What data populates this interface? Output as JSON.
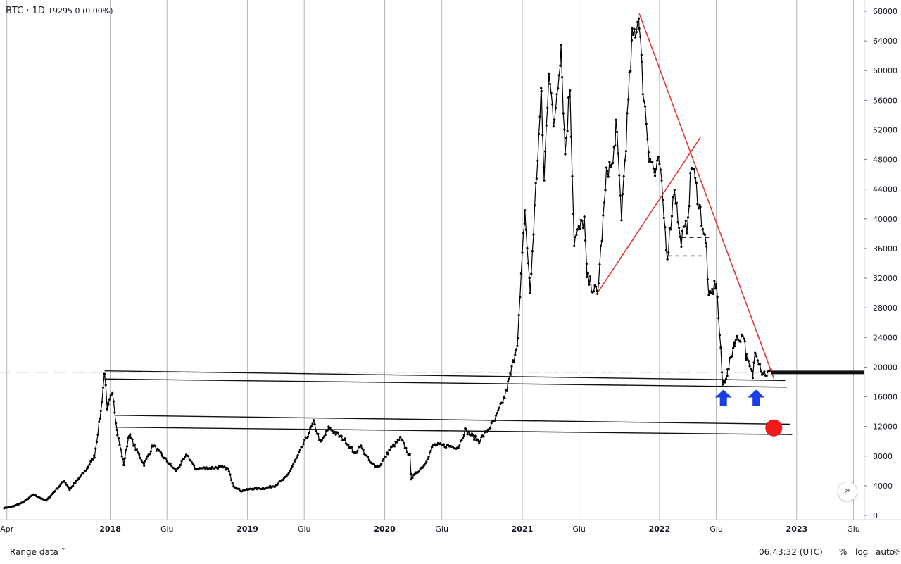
{
  "legend": {
    "symbol": "BTC",
    "interval": "1D",
    "values": "19295  0 (0.00%)"
  },
  "bottom_bar": {
    "range_label": "Range data",
    "time": "06:43:32 (UTC)",
    "percent": "%",
    "log": "log",
    "auto": "auto",
    "settings_icon": "gear-icon"
  },
  "scroll_button_icon": "double-chevron-right-icon",
  "colors": {
    "price": "#000000",
    "trendline": "#e53935",
    "arrow": "#1a3ee6",
    "marker": "#f01a1a",
    "grid": "#b2b5be",
    "text": "#131722"
  },
  "chart_data": {
    "type": "line",
    "symbol": "BTC",
    "interval": "1D",
    "x_ticks": [
      "Apr",
      "2018",
      "Giu",
      "2019",
      "Giu",
      "2020",
      "Giu",
      "2021",
      "Giu",
      "2022",
      "Giu",
      "2023",
      "Giu"
    ],
    "y_ticks": [
      0,
      4000,
      8000,
      12000,
      16000,
      20000,
      24000,
      28000,
      32000,
      36000,
      40000,
      44000,
      48000,
      52000,
      56000,
      60000,
      64000,
      68000
    ],
    "ylim": [
      0,
      68000
    ],
    "xlim": [
      "2017-03-25",
      "2023-06-30"
    ],
    "current_price": 19295,
    "series": [
      {
        "points": [
          [
            "2017-03-25",
            1000
          ],
          [
            "2017-04-20",
            1250
          ],
          [
            "2017-05-15",
            1800
          ],
          [
            "2017-06-10",
            2800
          ],
          [
            "2017-07-15",
            2000
          ],
          [
            "2017-08-05",
            3200
          ],
          [
            "2017-09-01",
            4700
          ],
          [
            "2017-09-15",
            3500
          ],
          [
            "2017-10-10",
            5000
          ],
          [
            "2017-11-01",
            6400
          ],
          [
            "2017-11-20",
            8000
          ],
          [
            "2017-12-07",
            14000
          ],
          [
            "2017-12-17",
            19500
          ],
          [
            "2017-12-24",
            14000
          ],
          [
            "2018-01-07",
            17000
          ],
          [
            "2018-01-20",
            11000
          ],
          [
            "2018-02-06",
            6900
          ],
          [
            "2018-02-20",
            11000
          ],
          [
            "2018-03-10",
            9000
          ],
          [
            "2018-04-01",
            6900
          ],
          [
            "2018-04-25",
            9500
          ],
          [
            "2018-05-20",
            8000
          ],
          [
            "2018-06-25",
            6000
          ],
          [
            "2018-07-25",
            8200
          ],
          [
            "2018-08-15",
            6300
          ],
          [
            "2018-09-20",
            6400
          ],
          [
            "2018-10-20",
            6500
          ],
          [
            "2018-11-10",
            6300
          ],
          [
            "2018-11-25",
            4000
          ],
          [
            "2018-12-15",
            3300
          ],
          [
            "2019-01-15",
            3600
          ],
          [
            "2019-02-15",
            3650
          ],
          [
            "2019-03-15",
            4000
          ],
          [
            "2019-04-15",
            5200
          ],
          [
            "2019-05-15",
            8000
          ],
          [
            "2019-06-26",
            12500
          ],
          [
            "2019-07-15",
            9800
          ],
          [
            "2019-08-06",
            11800
          ],
          [
            "2019-09-20",
            10000
          ],
          [
            "2019-10-15",
            8300
          ],
          [
            "2019-10-27",
            9500
          ],
          [
            "2019-11-25",
            7000
          ],
          [
            "2019-12-17",
            6600
          ],
          [
            "2020-01-15",
            8900
          ],
          [
            "2020-02-12",
            10400
          ],
          [
            "2020-03-08",
            8000
          ],
          [
            "2020-03-12",
            5000
          ],
          [
            "2020-04-15",
            6800
          ],
          [
            "2020-05-10",
            9500
          ],
          [
            "2020-06-15",
            9400
          ],
          [
            "2020-07-15",
            9200
          ],
          [
            "2020-08-02",
            11500
          ],
          [
            "2020-09-08",
            10000
          ],
          [
            "2020-10-20",
            12800
          ],
          [
            "2020-11-15",
            16000
          ],
          [
            "2020-12-01",
            19000
          ],
          [
            "2020-12-20",
            23800
          ],
          [
            "2021-01-08",
            41000
          ],
          [
            "2021-01-22",
            30000
          ],
          [
            "2021-02-08",
            46000
          ],
          [
            "2021-02-21",
            57000
          ],
          [
            "2021-02-28",
            45000
          ],
          [
            "2021-03-13",
            61000
          ],
          [
            "2021-03-25",
            52000
          ],
          [
            "2021-04-14",
            63500
          ],
          [
            "2021-04-25",
            49000
          ],
          [
            "2021-05-08",
            58000
          ],
          [
            "2021-05-19",
            37000
          ],
          [
            "2021-06-15",
            40000
          ],
          [
            "2021-06-22",
            32000
          ],
          [
            "2021-07-20",
            29800
          ],
          [
            "2021-08-15",
            47000
          ],
          [
            "2021-08-30",
            47000
          ],
          [
            "2021-09-07",
            52700
          ],
          [
            "2021-09-22",
            40500
          ],
          [
            "2021-10-20",
            64000
          ],
          [
            "2021-11-08",
            67500
          ],
          [
            "2021-11-15",
            60000
          ],
          [
            "2021-12-04",
            49000
          ],
          [
            "2021-12-20",
            46000
          ],
          [
            "2022-01-01",
            47500
          ],
          [
            "2022-01-22",
            35000
          ],
          [
            "2022-02-10",
            44500
          ],
          [
            "2022-02-25",
            37000
          ],
          [
            "2022-03-15",
            39000
          ],
          [
            "2022-03-28",
            47500
          ],
          [
            "2022-04-20",
            41000
          ],
          [
            "2022-05-06",
            36000
          ],
          [
            "2022-05-12",
            29000
          ],
          [
            "2022-06-01",
            31500
          ],
          [
            "2022-06-13",
            22000
          ],
          [
            "2022-06-18",
            17600
          ],
          [
            "2022-07-01",
            19300
          ],
          [
            "2022-07-20",
            23500
          ],
          [
            "2022-08-13",
            24400
          ],
          [
            "2022-08-20",
            21200
          ],
          [
            "2022-09-06",
            18800
          ],
          [
            "2022-09-13",
            22500
          ],
          [
            "2022-10-01",
            19300
          ],
          [
            "2022-10-15",
            19100
          ],
          [
            "2022-10-25",
            19295
          ]
        ]
      }
    ],
    "trendlines": [
      {
        "kind": "support-line",
        "from": [
          "2017-12-17",
          19500
        ],
        "to": [
          "2022-12-01",
          18200
        ]
      },
      {
        "kind": "support-line",
        "from": [
          "2017-12-17",
          18400
        ],
        "to": [
          "2022-12-05",
          17300
        ]
      },
      {
        "kind": "support-line",
        "from": [
          "2018-01-15",
          13500
        ],
        "to": [
          "2022-12-15",
          12300
        ]
      },
      {
        "kind": "support-line",
        "from": [
          "2018-01-15",
          11900
        ],
        "to": [
          "2022-12-20",
          10900
        ]
      },
      {
        "kind": "red-trendline",
        "from": [
          "2021-11-08",
          67700
        ],
        "to": [
          "2022-11-01",
          18500
        ]
      },
      {
        "kind": "red-trendline",
        "from": [
          "2021-07-20",
          30000
        ],
        "to": [
          "2022-04-20",
          51000
        ]
      },
      {
        "kind": "dashed-level",
        "from": [
          "2022-03-01",
          37500
        ],
        "to": [
          "2022-05-15",
          37500
        ]
      },
      {
        "kind": "dashed-level",
        "from": [
          "2022-01-22",
          35000
        ],
        "to": [
          "2022-05-01",
          35000
        ]
      },
      {
        "kind": "thick-level",
        "from": [
          "2022-10-25",
          19295
        ],
        "to": [
          "2023-07-01",
          19295
        ]
      }
    ],
    "annotations": [
      {
        "kind": "arrow-up",
        "x": "2022-06-20",
        "y": 16000
      },
      {
        "kind": "arrow-up",
        "x": "2022-09-15",
        "y": 16000
      },
      {
        "kind": "red-dot",
        "x": "2022-11-01",
        "y": 11800
      }
    ]
  }
}
